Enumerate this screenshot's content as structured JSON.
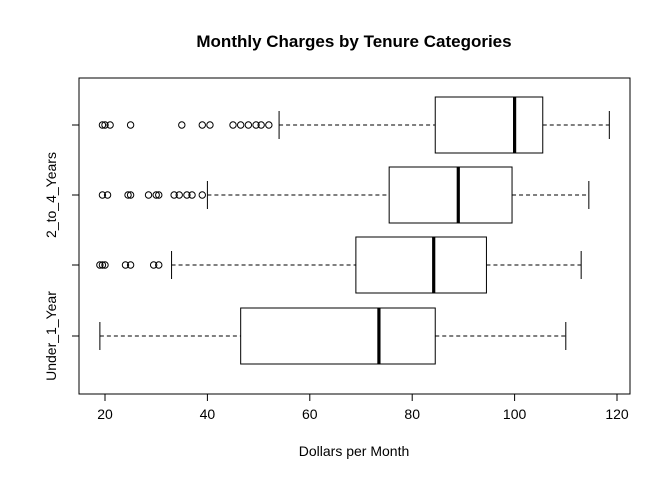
{
  "chart_data": {
    "type": "boxplot",
    "orientation": "horizontal",
    "title": "Monthly Charges by Tenure Categories",
    "xlabel": "Dollars per Month",
    "ylabel": "",
    "xlim": [
      15,
      122
    ],
    "xticks": [
      20,
      40,
      60,
      80,
      100,
      120
    ],
    "grid": false,
    "groups": [
      {
        "label": "Under_1_Year",
        "label_shown": true,
        "whisker_low": 19,
        "q1": 46.5,
        "median": 73.5,
        "q3": 84.5,
        "whisker_high": 110,
        "outliers": []
      },
      {
        "label": "",
        "label_shown": false,
        "whisker_low": 33,
        "q1": 69,
        "median": 84.2,
        "q3": 94.5,
        "whisker_high": 113,
        "outliers": [
          19,
          19.5,
          20,
          24,
          25,
          29.5,
          30.5
        ]
      },
      {
        "label": "2_to_4_Years",
        "label_shown": true,
        "whisker_low": 40,
        "q1": 75.5,
        "median": 89,
        "q3": 99.5,
        "whisker_high": 114.5,
        "outliers": [
          19.5,
          20.5,
          24.5,
          25,
          28.5,
          30,
          30.5,
          33.5,
          34.5,
          36,
          37,
          39
        ]
      },
      {
        "label": "",
        "label_shown": false,
        "whisker_low": 54,
        "q1": 84.5,
        "median": 100,
        "q3": 105.5,
        "whisker_high": 118.5,
        "outliers": [
          19.5,
          20,
          21,
          25,
          35,
          39,
          40.5,
          45,
          46.5,
          48,
          49.5,
          50.5,
          52
        ]
      }
    ]
  }
}
